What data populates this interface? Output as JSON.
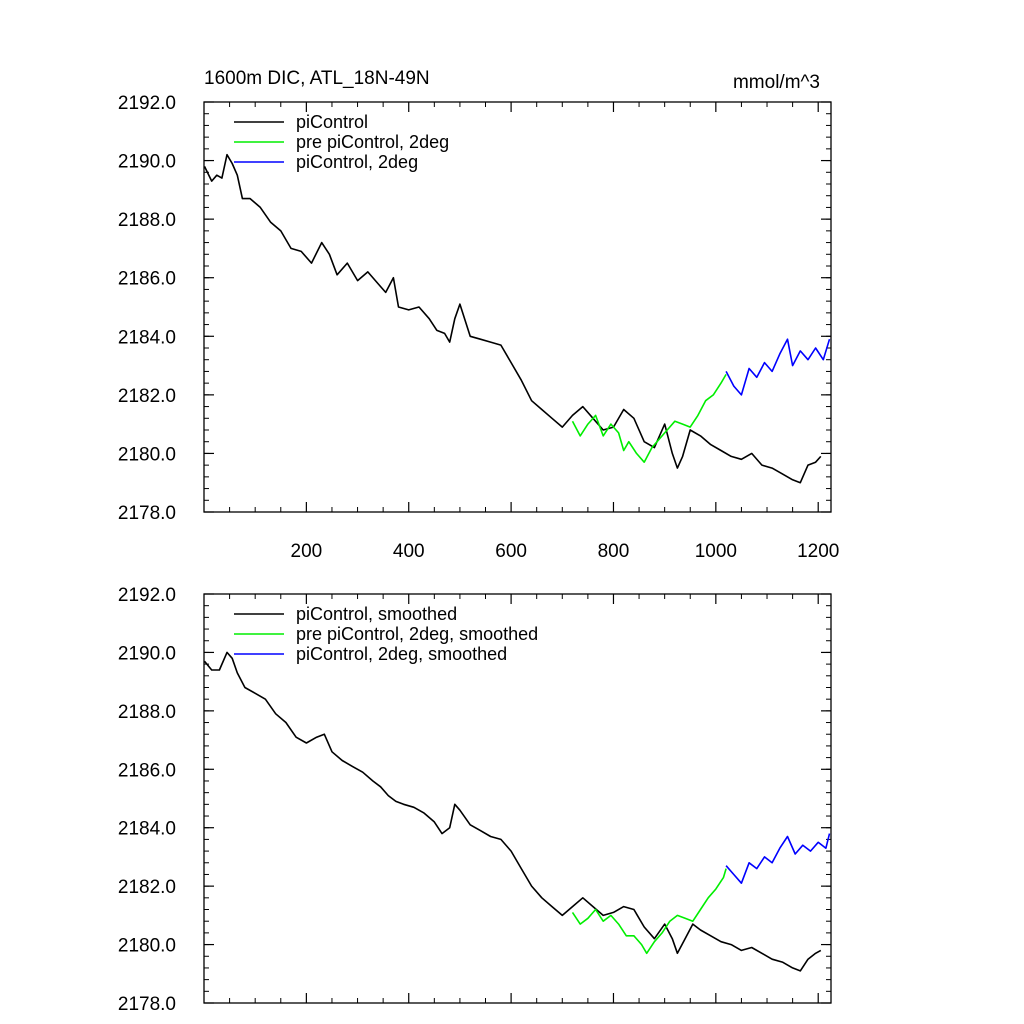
{
  "figure": {
    "title_left": "1600m DIC, ATL_18N-49N",
    "title_right": "mmol/m^3"
  },
  "chart_data": [
    {
      "type": "line",
      "panel": "top",
      "xlim": [
        0,
        1225
      ],
      "ylim": [
        2178.0,
        2192.0
      ],
      "xticks": [
        200,
        400,
        600,
        800,
        1000,
        1200
      ],
      "xtick_labels": [
        "200",
        "400",
        "600",
        "800",
        "1000",
        "1200"
      ],
      "xtick_labels_shown": true,
      "yticks": [
        2178,
        2180,
        2182,
        2184,
        2186,
        2188,
        2190,
        2192
      ],
      "ytick_labels": [
        "2178.0",
        "2180.0",
        "2182.0",
        "2184.0",
        "2186.0",
        "2188.0",
        "2190.0",
        "2192.0"
      ],
      "legend_position": "top-left",
      "grid": false,
      "series": [
        {
          "name": "piControl",
          "color": "#000000",
          "x": [
            1,
            15,
            25,
            35,
            45,
            55,
            65,
            75,
            90,
            110,
            130,
            150,
            170,
            190,
            210,
            230,
            245,
            260,
            280,
            300,
            320,
            340,
            355,
            370,
            380,
            400,
            420,
            440,
            455,
            470,
            480,
            490,
            500,
            520,
            540,
            560,
            580,
            600,
            620,
            640,
            660,
            680,
            700,
            720,
            740,
            760,
            780,
            800,
            820,
            840,
            860,
            880,
            900,
            915,
            925,
            935,
            950,
            970,
            990,
            1010,
            1030,
            1050,
            1070,
            1090,
            1110,
            1130,
            1150,
            1165,
            1180,
            1195,
            1205
          ],
          "values": [
            2189.8,
            2189.3,
            2189.5,
            2189.4,
            2190.2,
            2189.9,
            2189.5,
            2188.7,
            2188.7,
            2188.4,
            2187.9,
            2187.6,
            2187.0,
            2186.9,
            2186.5,
            2187.2,
            2186.8,
            2186.1,
            2186.5,
            2185.9,
            2186.2,
            2185.8,
            2185.5,
            2186.0,
            2185.0,
            2184.9,
            2185.0,
            2184.6,
            2184.2,
            2184.1,
            2183.8,
            2184.6,
            2185.1,
            2184.0,
            2183.9,
            2183.8,
            2183.7,
            2183.1,
            2182.5,
            2181.8,
            2181.5,
            2181.2,
            2180.9,
            2181.3,
            2181.6,
            2181.2,
            2180.8,
            2180.9,
            2181.5,
            2181.2,
            2180.4,
            2180.2,
            2181.0,
            2180.0,
            2179.5,
            2179.9,
            2180.8,
            2180.6,
            2180.3,
            2180.1,
            2179.9,
            2179.8,
            2180.0,
            2179.6,
            2179.5,
            2179.3,
            2179.1,
            2179.0,
            2179.6,
            2179.7,
            2179.9
          ]
        },
        {
          "name": "pre piControl, 2deg",
          "color": "#00ee00",
          "x": [
            720,
            735,
            750,
            765,
            780,
            795,
            810,
            820,
            830,
            845,
            860,
            875,
            890,
            905,
            920,
            935,
            950,
            965,
            980,
            995,
            1010,
            1020
          ],
          "values": [
            2181.1,
            2180.6,
            2181.0,
            2181.3,
            2180.6,
            2181.0,
            2180.7,
            2180.1,
            2180.4,
            2180.0,
            2179.7,
            2180.2,
            2180.5,
            2180.8,
            2181.1,
            2181.0,
            2180.9,
            2181.3,
            2181.8,
            2182.0,
            2182.4,
            2182.7
          ]
        },
        {
          "name": "piControl, 2deg",
          "color": "#0000ff",
          "x": [
            1020,
            1035,
            1050,
            1065,
            1080,
            1095,
            1110,
            1125,
            1140,
            1150,
            1165,
            1180,
            1195,
            1210,
            1222
          ],
          "values": [
            2182.8,
            2182.3,
            2182.0,
            2182.9,
            2182.6,
            2183.1,
            2182.8,
            2183.4,
            2183.9,
            2183.0,
            2183.5,
            2183.2,
            2183.6,
            2183.2,
            2183.9
          ]
        }
      ]
    },
    {
      "type": "line",
      "panel": "bottom",
      "xlim": [
        0,
        1225
      ],
      "ylim": [
        2178.0,
        2192.0
      ],
      "xticks": [
        200,
        400,
        600,
        800,
        1000,
        1200
      ],
      "xtick_labels_shown": false,
      "yticks": [
        2178,
        2180,
        2182,
        2184,
        2186,
        2188,
        2190,
        2192
      ],
      "ytick_labels": [
        "2178.0",
        "2180.0",
        "2182.0",
        "2184.0",
        "2186.0",
        "2188.0",
        "2190.0",
        "2192.0"
      ],
      "legend_position": "top-left",
      "grid": false,
      "series": [
        {
          "name": "piControl, smoothed",
          "color": "#000000",
          "x": [
            1,
            15,
            30,
            45,
            55,
            65,
            80,
            100,
            120,
            140,
            160,
            180,
            200,
            220,
            235,
            250,
            270,
            290,
            310,
            330,
            345,
            360,
            375,
            390,
            410,
            430,
            450,
            465,
            480,
            490,
            500,
            520,
            540,
            560,
            580,
            600,
            620,
            640,
            660,
            680,
            700,
            720,
            740,
            760,
            780,
            800,
            820,
            840,
            860,
            880,
            900,
            915,
            925,
            940,
            955,
            970,
            990,
            1010,
            1030,
            1050,
            1070,
            1090,
            1110,
            1130,
            1150,
            1165,
            1180,
            1195,
            1205
          ],
          "values": [
            2189.7,
            2189.4,
            2189.4,
            2190.0,
            2189.8,
            2189.3,
            2188.8,
            2188.6,
            2188.4,
            2187.9,
            2187.6,
            2187.1,
            2186.9,
            2187.1,
            2187.2,
            2186.6,
            2186.3,
            2186.1,
            2185.9,
            2185.6,
            2185.4,
            2185.1,
            2184.9,
            2184.8,
            2184.7,
            2184.5,
            2184.2,
            2183.8,
            2184.0,
            2184.8,
            2184.6,
            2184.1,
            2183.9,
            2183.7,
            2183.6,
            2183.2,
            2182.6,
            2182.0,
            2181.6,
            2181.3,
            2181.0,
            2181.3,
            2181.6,
            2181.3,
            2181.0,
            2181.1,
            2181.3,
            2181.2,
            2180.6,
            2180.2,
            2180.7,
            2180.2,
            2179.7,
            2180.2,
            2180.7,
            2180.5,
            2180.3,
            2180.1,
            2180.0,
            2179.8,
            2179.9,
            2179.7,
            2179.5,
            2179.4,
            2179.2,
            2179.1,
            2179.5,
            2179.7,
            2179.8
          ]
        },
        {
          "name": "pre piControl, 2deg, smoothed",
          "color": "#00ee00",
          "x": [
            720,
            735,
            750,
            765,
            780,
            795,
            810,
            825,
            840,
            855,
            865,
            880,
            895,
            910,
            925,
            940,
            955,
            970,
            985,
            1000,
            1015,
            1020
          ],
          "values": [
            2181.1,
            2180.7,
            2180.9,
            2181.2,
            2180.8,
            2181.0,
            2180.7,
            2180.3,
            2180.3,
            2180.0,
            2179.7,
            2180.1,
            2180.4,
            2180.8,
            2181.0,
            2180.9,
            2180.8,
            2181.2,
            2181.6,
            2181.9,
            2182.3,
            2182.6
          ]
        },
        {
          "name": "piControl, 2deg, smoothed",
          "color": "#0000ff",
          "x": [
            1020,
            1035,
            1050,
            1065,
            1080,
            1095,
            1110,
            1125,
            1140,
            1155,
            1170,
            1185,
            1200,
            1215,
            1222
          ],
          "values": [
            2182.7,
            2182.4,
            2182.1,
            2182.8,
            2182.6,
            2183.0,
            2182.8,
            2183.3,
            2183.7,
            2183.1,
            2183.4,
            2183.2,
            2183.5,
            2183.3,
            2183.8
          ]
        }
      ]
    }
  ]
}
